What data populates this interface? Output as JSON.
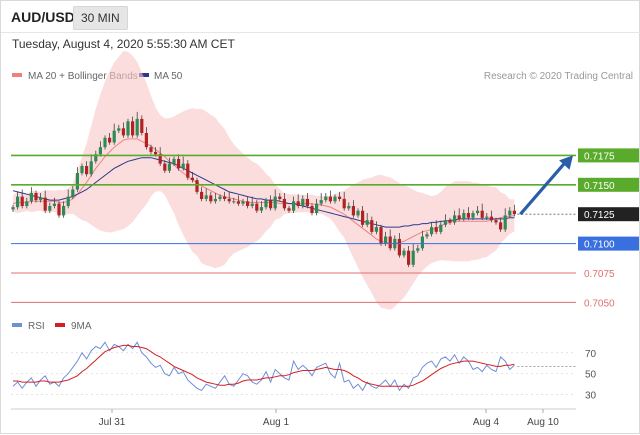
{
  "header": {
    "symbol": "AUD/USD",
    "interval": "30 MIN",
    "datetime": "Tuesday, August 4, 2020 5:55:30 AM CET"
  },
  "colors": {
    "candle_up": "#2e8b57",
    "candle_down": "#b22222",
    "wick": "#444444",
    "bollinger_band": "#f9c6c6",
    "ma20": "#f08080",
    "ma50": "#2b3a8f",
    "resistance": "#5aab2c",
    "support_blue": "#3a6fe0",
    "support_red": "#e07070",
    "last_price": "#222222",
    "arrow": "#2a5ea8",
    "rsi": "#6f8fd8",
    "rsi_ma": "#d42020"
  },
  "chart_data": [
    {
      "type": "candlestick",
      "title": "",
      "legend": [
        {
          "label": "MA 20 + Bollinger Bands",
          "color": "#f08080"
        },
        {
          "label": "MA 50",
          "color": "#2b3a8f"
        }
      ],
      "credit": "Research © 2020 Trading Central",
      "x_axis": {
        "ticks": [
          "Jul 31",
          "Aug 1",
          "Aug 4",
          "Aug 10"
        ]
      },
      "y_range": [
        7041,
        7234
      ],
      "last_price": "0.7125",
      "levels": [
        {
          "value": "0.7175",
          "style": "resistance"
        },
        {
          "value": "0.7150",
          "style": "resistance"
        },
        {
          "value": "0.7100",
          "style": "support_blue"
        },
        {
          "value": "0.7075",
          "style": "support_red"
        },
        {
          "value": "0.7050",
          "style": "support_red"
        }
      ],
      "arrow": {
        "from": [
          118,
          7125
        ],
        "to": [
          140,
          7175
        ]
      },
      "series": [
        {
          "name": "Close",
          "values": [
            7131,
            7140,
            7132,
            7136,
            7143,
            7137,
            7139,
            7128,
            7132,
            7134,
            7124,
            7132,
            7140,
            7146,
            7160,
            7166,
            7159,
            7170,
            7176,
            7182,
            7190,
            7186,
            7196,
            7198,
            7192,
            7204,
            7192,
            7206,
            7194,
            7182,
            7178,
            7176,
            7168,
            7162,
            7168,
            7172,
            7164,
            7168,
            7156,
            7154,
            7144,
            7138,
            7141,
            7136,
            7138,
            7140,
            7138,
            7136,
            7136,
            7134,
            7136,
            7132,
            7134,
            7128,
            7131,
            7137,
            7130,
            7140,
            7138,
            7130,
            7128,
            7136,
            7132,
            7138,
            7132,
            7126,
            7134,
            7137,
            7140,
            7136,
            7140,
            7138,
            7130,
            7132,
            7124,
            7128,
            7116,
            7120,
            7110,
            7114,
            7100,
            7106,
            7096,
            7104,
            7090,
            7094,
            7082,
            7094,
            7096,
            7106,
            7108,
            7114,
            7110,
            7116,
            7120,
            7118,
            7124,
            7121,
            7126,
            7122,
            7126,
            7128,
            7122,
            7123,
            7120,
            7118,
            7112,
            7124,
            7128,
            7125
          ]
        },
        {
          "name": "MA 20",
          "values": [
            7134,
            7135,
            7135,
            7135,
            7136,
            7136,
            7136,
            7136,
            7136,
            7136,
            7135,
            7135,
            7136,
            7138,
            7142,
            7147,
            7152,
            7158,
            7164,
            7169,
            7174,
            7178,
            7182,
            7185,
            7188,
            7189,
            7189,
            7189,
            7187,
            7185,
            7183,
            7180,
            7177,
            7174,
            7170,
            7167,
            7163,
            7160,
            7157,
            7154,
            7152,
            7149,
            7147,
            7145,
            7143,
            7141,
            7140,
            7139,
            7138,
            7137,
            7136,
            7135,
            7135,
            7135,
            7135,
            7135,
            7135,
            7135,
            7134,
            7134,
            7134,
            7134,
            7134,
            7134,
            7134,
            7134,
            7133,
            7133,
            7132,
            7131,
            7129,
            7127,
            7125,
            7122,
            7119,
            7116,
            7113,
            7110,
            7107,
            7104,
            7102,
            7101,
            7100,
            7100,
            7101,
            7102,
            7104,
            7106,
            7108,
            7110,
            7111,
            7112,
            7113,
            7115,
            7117,
            7118,
            7119,
            7119,
            7119,
            7119,
            7119,
            7119,
            7119,
            7119,
            7120,
            7121,
            7122,
            7123,
            7123,
            7124
          ]
        },
        {
          "name": "MA 50",
          "values": [
            7145,
            7144,
            7143,
            7142,
            7141,
            7140,
            7139,
            7138,
            7137,
            7137,
            7137,
            7138,
            7139,
            7140,
            7142,
            7144,
            7146,
            7149,
            7152,
            7155,
            7158,
            7161,
            7164,
            7166,
            7168,
            7170,
            7171,
            7172,
            7173,
            7173,
            7173,
            7172,
            7171,
            7170,
            7169,
            7168,
            7166,
            7164,
            7162,
            7160,
            7158,
            7156,
            7154,
            7152,
            7150,
            7148,
            7146,
            7144,
            7143,
            7142,
            7141,
            7140,
            7139,
            7138,
            7138,
            7137,
            7137,
            7137,
            7136,
            7135,
            7134,
            7134,
            7133,
            7132,
            7131,
            7130,
            7129,
            7128,
            7127,
            7126,
            7125,
            7124,
            7123,
            7122,
            7121,
            7120,
            7119,
            7118,
            7117,
            7116,
            7115,
            7114,
            7114,
            7114,
            7114,
            7115,
            7115,
            7116,
            7116,
            7117,
            7117,
            7118,
            7118,
            7119,
            7119,
            7120,
            7120,
            7121,
            7121,
            7121,
            7121,
            7121,
            7121,
            7121,
            7121,
            7121,
            7121,
            7121,
            7122,
            7122
          ]
        }
      ]
    },
    {
      "type": "line",
      "title": "",
      "legend": [
        {
          "label": "RSI",
          "color": "#6f8fd8"
        },
        {
          "label": "9MA",
          "color": "#d42020"
        }
      ],
      "y_ticks": [
        "70",
        "50",
        "30"
      ],
      "y_range": [
        22,
        86
      ],
      "series": [
        {
          "name": "RSI",
          "values": [
            38,
            42,
            36,
            42,
            46,
            38,
            44,
            48,
            40,
            42,
            38,
            46,
            50,
            56,
            62,
            70,
            64,
            72,
            76,
            74,
            80,
            72,
            78,
            76,
            72,
            78,
            74,
            80,
            70,
            66,
            60,
            56,
            58,
            50,
            48,
            56,
            50,
            52,
            44,
            40,
            36,
            34,
            40,
            38,
            36,
            42,
            48,
            40,
            38,
            44,
            50,
            48,
            42,
            40,
            44,
            52,
            42,
            54,
            50,
            46,
            44,
            62,
            54,
            58,
            54,
            48,
            56,
            58,
            60,
            50,
            46,
            60,
            42,
            44,
            36,
            40,
            34,
            42,
            38,
            36,
            40,
            44,
            38,
            44,
            34,
            40,
            36,
            46,
            48,
            56,
            60,
            62,
            56,
            64,
            66,
            62,
            68,
            60,
            66,
            62,
            54,
            56,
            52,
            58,
            54,
            52,
            66,
            62,
            54,
            58
          ]
        },
        {
          "name": "9MA",
          "values": [
            43,
            43,
            42,
            42,
            42,
            42,
            43,
            43,
            42,
            42,
            42,
            43,
            44,
            46,
            48,
            52,
            55,
            59,
            63,
            67,
            71,
            73,
            75,
            76,
            77,
            77,
            76,
            76,
            75,
            74,
            71,
            68,
            66,
            63,
            60,
            57,
            55,
            53,
            51,
            49,
            46,
            44,
            42,
            41,
            40,
            39,
            39,
            40,
            40,
            41,
            43,
            44,
            44,
            44,
            45,
            46,
            46,
            47,
            48,
            48,
            49,
            51,
            52,
            53,
            53,
            53,
            54,
            55,
            56,
            55,
            54,
            54,
            53,
            51,
            48,
            46,
            43,
            41,
            40,
            39,
            38,
            38,
            38,
            38,
            38,
            38,
            38,
            39,
            41,
            43,
            46,
            49,
            52,
            55,
            57,
            59,
            60,
            61,
            62,
            62,
            62,
            61,
            60,
            59,
            58,
            57,
            57,
            58,
            58,
            59
          ]
        }
      ]
    }
  ]
}
